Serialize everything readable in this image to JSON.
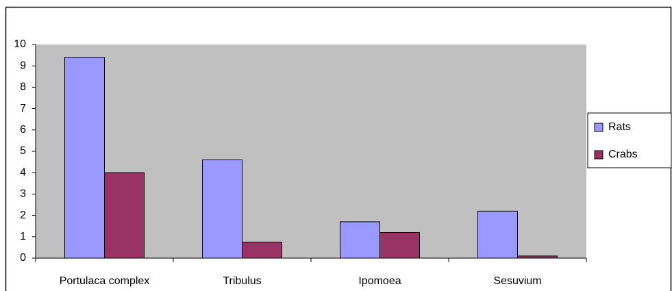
{
  "chart_data": {
    "type": "bar",
    "categories": [
      "Portulaca complex",
      "Tribulus",
      "Ipomoea",
      "Sesuvium"
    ],
    "series": [
      {
        "name": "Rats",
        "color": "#9999ff",
        "values": [
          9.4,
          4.6,
          1.7,
          2.2
        ]
      },
      {
        "name": "Crabs",
        "color": "#993366",
        "values": [
          4.0,
          0.75,
          1.2,
          0.1
        ]
      }
    ],
    "ylim": [
      0,
      10
    ],
    "yticks": [
      0,
      1,
      2,
      3,
      4,
      5,
      6,
      7,
      8,
      9,
      10
    ],
    "plot_background": "#c0c0c0",
    "legend": "right"
  }
}
